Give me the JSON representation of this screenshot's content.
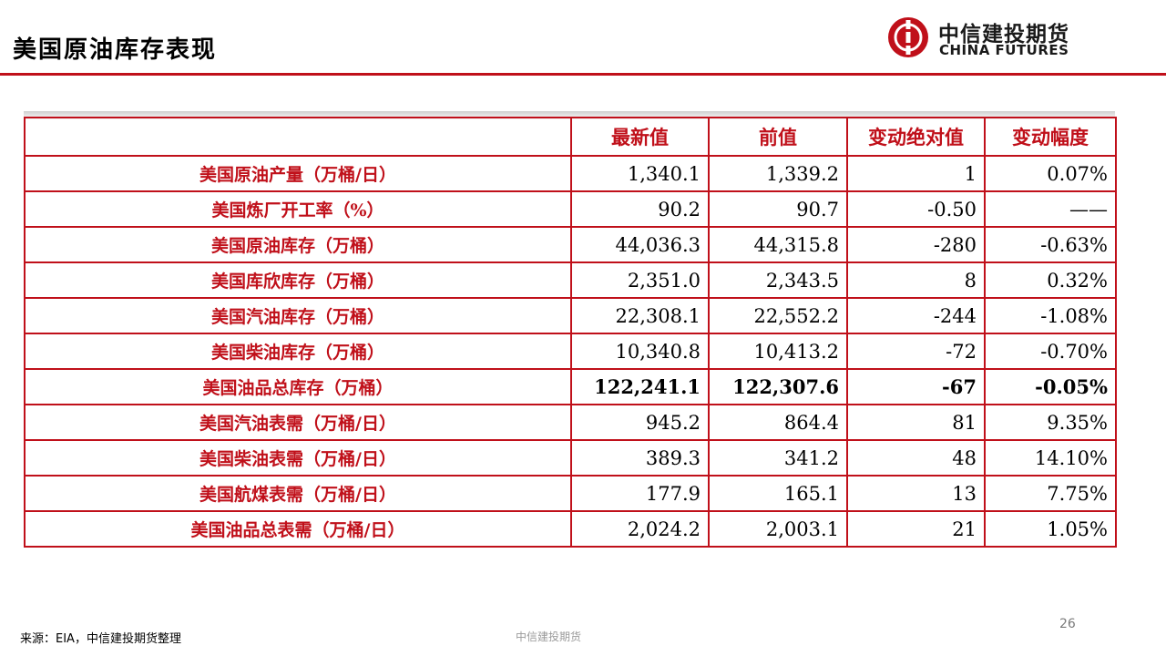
{
  "page_title": "美国原油库存表现",
  "brand": {
    "cn": "中信建投期货",
    "en": "CHINA FUTURES",
    "logo_icon": "citic-logo-icon",
    "accent": "#c0101a"
  },
  "table": {
    "headers": [
      "",
      "最新值",
      "前值",
      "变动绝对值",
      "变动幅度"
    ],
    "rows": [
      {
        "label": "美国原油产量（万桶/日）",
        "latest": "1,340.1",
        "prev": "1,339.2",
        "abs": "1",
        "pct": "0.07%"
      },
      {
        "label": "美国炼厂开工率（%）",
        "latest": "90.2",
        "prev": "90.7",
        "abs": "-0.50",
        "pct": "——"
      },
      {
        "label": "美国原油库存（万桶）",
        "latest": "44,036.3",
        "prev": "44,315.8",
        "abs": "-280",
        "pct": "-0.63%"
      },
      {
        "label": "美国库欣库存（万桶）",
        "latest": "2,351.0",
        "prev": "2,343.5",
        "abs": "8",
        "pct": "0.32%"
      },
      {
        "label": "美国汽油库存（万桶）",
        "latest": "22,308.1",
        "prev": "22,552.2",
        "abs": "-244",
        "pct": "-1.08%"
      },
      {
        "label": "美国柴油库存（万桶）",
        "latest": "10,340.8",
        "prev": "10,413.2",
        "abs": "-72",
        "pct": "-0.70%"
      },
      {
        "label": "美国油品总库存（万桶）",
        "latest": "122,241.1",
        "prev": "122,307.6",
        "abs": "-67",
        "pct": "-0.05%"
      },
      {
        "label": "美国汽油表需（万桶/日）",
        "latest": "945.2",
        "prev": "864.4",
        "abs": "81",
        "pct": "9.35%"
      },
      {
        "label": "美国柴油表需（万桶/日）",
        "latest": "389.3",
        "prev": "341.2",
        "abs": "48",
        "pct": "14.10%"
      },
      {
        "label": "美国航煤表需（万桶/日）",
        "latest": "177.9",
        "prev": "165.1",
        "abs": "13",
        "pct": "7.75%"
      },
      {
        "label": "美国油品总表需（万桶/日）",
        "latest": "2,024.2",
        "prev": "2,003.1",
        "abs": "21",
        "pct": "1.05%"
      }
    ]
  },
  "footer": {
    "source": "来源：EIA，中信建投期货整理",
    "center": "中信建投期货",
    "page": "26"
  }
}
